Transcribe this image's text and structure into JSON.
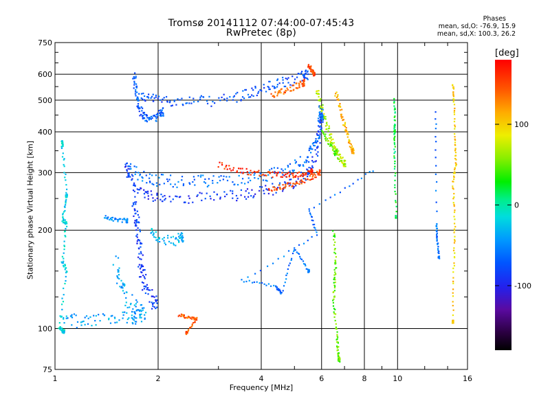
{
  "header": {
    "title": "Tromsø 20141112 07:44:00-07:45:43",
    "subtitle": "RwPretec (8p)"
  },
  "stats": {
    "heading": "Phases",
    "line_o": "mean, sd,O: -76.9, 15.9",
    "line_x": "mean, sd,X: 100.3, 26.2"
  },
  "colorbar": {
    "label": "[deg]",
    "range": [
      -180,
      180
    ],
    "ticks": [
      "100",
      "0",
      "-100"
    ],
    "tick_values": [
      100,
      0,
      -100
    ]
  },
  "chart_data": {
    "type": "scatter",
    "xlabel": "Frequency [MHz]",
    "ylabel": "Stationary phase Virtual Height [km]",
    "xscale": "log",
    "yscale": "log",
    "xlim": [
      1,
      16
    ],
    "ylim": [
      75,
      750
    ],
    "xticks": [
      1,
      2,
      4,
      6,
      8,
      10,
      16
    ],
    "xticklabels": [
      "1",
      "2",
      "4",
      "6",
      "8",
      "10",
      "16"
    ],
    "yticks": [
      75,
      100,
      200,
      300,
      400,
      500,
      600,
      750
    ],
    "yticklabels": [
      "75",
      "100",
      "200",
      "300",
      "400",
      "500",
      "600",
      "750"
    ],
    "grid": true,
    "color_by": "phase (deg)",
    "traces": [
      {
        "points": [
          [
            1.75,
            515
          ],
          [
            1.9,
            505
          ],
          [
            2.1,
            500
          ],
          [
            2.4,
            496
          ],
          [
            2.8,
            496
          ],
          [
            3.3,
            506
          ],
          [
            3.7,
            525
          ],
          [
            4.1,
            545
          ],
          [
            4.5,
            560
          ],
          [
            5.0,
            575
          ],
          [
            5.4,
            600
          ]
        ],
        "phase": -75,
        "spread": 8
      },
      {
        "points": [
          [
            4.3,
            520
          ],
          [
            4.6,
            530
          ],
          [
            5.0,
            548
          ],
          [
            5.3,
            565
          ]
        ],
        "phase": 140,
        "spread": 5
      },
      {
        "points": [
          [
            1.7,
            590
          ],
          [
            1.72,
            540
          ],
          [
            1.75,
            480
          ],
          [
            1.8,
            450
          ],
          [
            1.85,
            440
          ],
          [
            1.95,
            440
          ],
          [
            2.05,
            460
          ]
        ],
        "phase": -70,
        "spread": 6
      },
      {
        "points": [
          [
            1.6,
            320
          ],
          [
            1.65,
            290
          ],
          [
            1.75,
            265
          ],
          [
            1.9,
            255
          ],
          [
            2.1,
            252
          ],
          [
            2.5,
            251
          ],
          [
            3.0,
            253
          ],
          [
            3.5,
            256
          ],
          [
            4.0,
            262
          ],
          [
            4.5,
            270
          ],
          [
            5.0,
            280
          ],
          [
            5.4,
            296
          ],
          [
            5.7,
            325
          ],
          [
            5.9,
            380
          ],
          [
            6.0,
            440
          ]
        ],
        "phase": -88,
        "spread": 8
      },
      {
        "points": [
          [
            1.62,
            310
          ],
          [
            1.75,
            295
          ],
          [
            1.95,
            285
          ],
          [
            2.2,
            282
          ],
          [
            2.6,
            282
          ],
          [
            3.0,
            285
          ],
          [
            3.5,
            288
          ],
          [
            4.0,
            292
          ],
          [
            4.5,
            300
          ],
          [
            5.0,
            312
          ],
          [
            5.4,
            330
          ],
          [
            5.7,
            360
          ],
          [
            5.9,
            400
          ],
          [
            6.0,
            460
          ]
        ],
        "phase": -60,
        "spread": 9
      },
      {
        "points": [
          [
            3.0,
            318
          ],
          [
            3.4,
            305
          ],
          [
            3.8,
            300
          ],
          [
            4.3,
            296
          ],
          [
            4.8,
            295
          ],
          [
            5.2,
            297
          ],
          [
            5.6,
            302
          ]
        ],
        "phase": 160,
        "spread": 4
      },
      {
        "points": [
          [
            4.2,
            268
          ],
          [
            4.6,
            272
          ],
          [
            5.0,
            278
          ],
          [
            5.5,
            288
          ],
          [
            5.9,
            300
          ]
        ],
        "phase": 150,
        "spread": 4
      },
      {
        "points": [
          [
            5.8,
            540
          ],
          [
            6.0,
            480
          ],
          [
            6.2,
            420
          ],
          [
            6.4,
            380
          ],
          [
            6.6,
            350
          ],
          [
            6.8,
            330
          ],
          [
            7.0,
            320
          ]
        ],
        "phase": 70,
        "spread": 5
      },
      {
        "points": [
          [
            6.0,
            400
          ],
          [
            6.3,
            370
          ],
          [
            6.6,
            345
          ]
        ],
        "phase": 50,
        "spread": 4
      },
      {
        "points": [
          [
            6.6,
            525
          ],
          [
            6.8,
            470
          ],
          [
            7.0,
            420
          ],
          [
            7.2,
            380
          ],
          [
            7.4,
            350
          ]
        ],
        "phase": 110,
        "spread": 4
      },
      {
        "points": [
          [
            5.5,
            640
          ],
          [
            5.6,
            620
          ],
          [
            5.7,
            600
          ]
        ],
        "phase": 150,
        "spread": 3
      },
      {
        "points": [
          [
            1.05,
            110
          ],
          [
            1.15,
            105
          ],
          [
            1.3,
            107
          ],
          [
            1.5,
            108
          ],
          [
            1.7,
            108
          ]
        ],
        "phase": -40,
        "spread": 9
      },
      {
        "points": [
          [
            1.7,
            250
          ],
          [
            1.72,
            220
          ],
          [
            1.74,
            200
          ],
          [
            1.76,
            180
          ],
          [
            1.78,
            160
          ],
          [
            1.8,
            145
          ],
          [
            1.85,
            130
          ],
          [
            1.95,
            120
          ]
        ],
        "phase": -85,
        "spread": 10
      },
      {
        "points": [
          [
            1.5,
            160
          ],
          [
            1.55,
            140
          ],
          [
            1.6,
            125
          ],
          [
            1.7,
            115
          ],
          [
            1.8,
            110
          ]
        ],
        "phase": -40,
        "spread": 12
      },
      {
        "points": [
          [
            1.9,
            200
          ],
          [
            2.0,
            190
          ],
          [
            2.2,
            185
          ],
          [
            2.35,
            190
          ]
        ],
        "phase": -30,
        "spread": 7
      },
      {
        "points": [
          [
            1.05,
            375
          ],
          [
            1.05,
            360
          ],
          [
            1.08,
            260
          ],
          [
            1.08,
            250
          ],
          [
            1.05,
            215
          ],
          [
            1.08,
            210
          ],
          [
            1.05,
            160
          ],
          [
            1.08,
            150
          ],
          [
            1.03,
            100
          ],
          [
            1.06,
            98
          ]
        ],
        "phase": -20,
        "spread": 3
      },
      {
        "points": [
          [
            1.4,
            220
          ],
          [
            1.5,
            216
          ],
          [
            1.62,
            214
          ]
        ],
        "phase": -50,
        "spread": 3
      },
      {
        "points": [
          [
            2.3,
            110
          ],
          [
            2.45,
            108
          ],
          [
            2.6,
            107
          ],
          [
            2.42,
            97
          ]
        ],
        "phase": 140,
        "spread": 2
      },
      {
        "points": [
          [
            6.5,
            200
          ],
          [
            6.6,
            160
          ],
          [
            6.55,
            140
          ],
          [
            6.5,
            120
          ],
          [
            6.65,
            95
          ],
          [
            6.7,
            85
          ],
          [
            6.75,
            80
          ]
        ],
        "phase": 50,
        "spread": 3
      },
      {
        "points": [
          [
            9.8,
            500
          ],
          [
            9.8,
            420
          ],
          [
            9.8,
            390
          ],
          [
            9.8,
            320
          ],
          [
            9.9,
            220
          ]
        ],
        "phase": 20,
        "spread": 2
      },
      {
        "points": [
          [
            12.9,
            460
          ],
          [
            13.0,
            210
          ],
          [
            13.0,
            190
          ],
          [
            13.2,
            165
          ]
        ],
        "phase": -60,
        "spread": 2
      },
      {
        "points": [
          [
            14.5,
            560
          ],
          [
            14.6,
            500
          ],
          [
            14.7,
            380
          ],
          [
            14.8,
            320
          ],
          [
            14.5,
            280
          ],
          [
            14.7,
            210
          ],
          [
            14.6,
            160
          ],
          [
            14.5,
            105
          ]
        ],
        "phase": 100,
        "spread": 2
      },
      {
        "points": [
          [
            8.5,
            305
          ],
          [
            5.5,
            230
          ],
          [
            5.8,
            195
          ],
          [
            3.5,
            140
          ],
          [
            4.4,
            135
          ],
          [
            4.6,
            128
          ],
          [
            5.0,
            175
          ],
          [
            5.5,
            150
          ]
        ],
        "phase": -60,
        "spread": 2
      }
    ]
  }
}
